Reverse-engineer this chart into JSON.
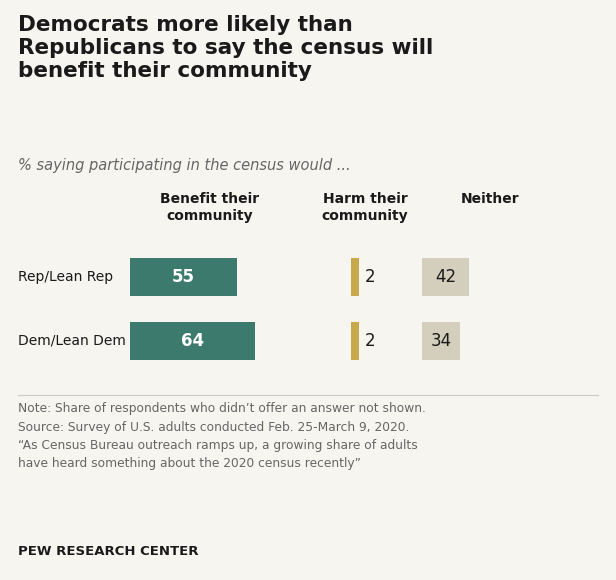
{
  "title": "Democrats more likely than\nRepublicans to say the census will\nbenefit their community",
  "subtitle": "% saying participating in the census would ...",
  "categories": [
    "Rep/Lean Rep",
    "Dem/Lean Dem"
  ],
  "benefit": [
    55,
    64
  ],
  "harm": [
    2,
    2
  ],
  "neither": [
    42,
    34
  ],
  "benefit_color": "#3d7a6e",
  "harm_color": "#c9a84c",
  "neither_color": "#d4cfbc",
  "col_headers": [
    "Benefit their\ncommunity",
    "Harm their\ncommunity",
    "Neither"
  ],
  "note_text": "Note: Share of respondents who didn’t offer an answer not shown.\nSource: Survey of U.S. adults conducted Feb. 25-March 9, 2020.\n“As Census Bureau outreach ramps up, a growing share of adults\nhave heard something about the 2020 census recently”",
  "footer": "PEW RESEARCH CENTER",
  "bg_color": "#f7f5ef",
  "title_fontsize": 15.5,
  "subtitle_fontsize": 10.5,
  "header_fontsize": 10,
  "label_fontsize": 10,
  "value_fontsize": 12,
  "note_fontsize": 8.8,
  "footer_fontsize": 9.5
}
